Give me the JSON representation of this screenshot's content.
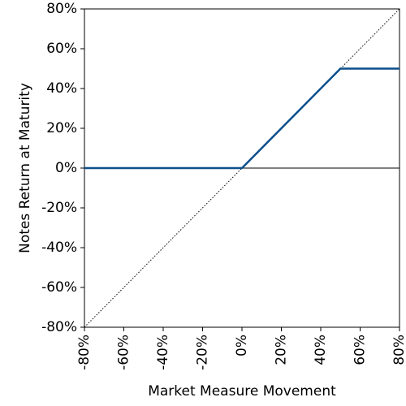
{
  "chart_data": {
    "type": "line",
    "xlabel": "Market Measure Movement",
    "ylabel": "Notes Return at Maturity",
    "xlim": [
      -80,
      80
    ],
    "ylim": [
      -80,
      80
    ],
    "xticks": [
      {
        "value": -80,
        "label": "-80%"
      },
      {
        "value": -60,
        "label": "-60%"
      },
      {
        "value": -40,
        "label": "-40%"
      },
      {
        "value": -20,
        "label": "-20%"
      },
      {
        "value": 0,
        "label": "0%"
      },
      {
        "value": 20,
        "label": "20%"
      },
      {
        "value": 40,
        "label": "40%"
      },
      {
        "value": 60,
        "label": "60%"
      },
      {
        "value": 80,
        "label": "80%"
      }
    ],
    "yticks": [
      {
        "value": -80,
        "label": "-80%"
      },
      {
        "value": -60,
        "label": "-60%"
      },
      {
        "value": -40,
        "label": "-40%"
      },
      {
        "value": -20,
        "label": "-20%"
      },
      {
        "value": 0,
        "label": "0%"
      },
      {
        "value": 20,
        "label": "20%"
      },
      {
        "value": 40,
        "label": "40%"
      },
      {
        "value": 60,
        "label": "60%"
      },
      {
        "value": 80,
        "label": "80%"
      }
    ],
    "hline": 0,
    "series": [
      {
        "x": [
          -80,
          80
        ],
        "values": [
          -80,
          80
        ],
        "color": "#000000",
        "dash": "dotted"
      },
      {
        "x": [
          -80,
          0,
          50,
          80
        ],
        "values": [
          0,
          0,
          50,
          50
        ],
        "color": "#0b4f8c",
        "dash": "solid"
      }
    ]
  }
}
